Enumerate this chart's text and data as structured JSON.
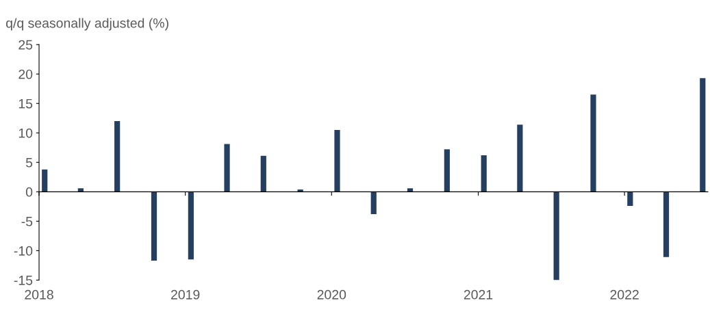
{
  "chart_data": {
    "type": "bar",
    "ylabel": "q/q seasonally adjusted (%)",
    "x": [
      "2018-01-15",
      "2018-04-15",
      "2018-07-15",
      "2018-10-15",
      "2019-01-15",
      "2019-04-15",
      "2019-07-15",
      "2019-10-15",
      "2020-01-15",
      "2020-04-15",
      "2020-07-15",
      "2020-10-15",
      "2021-01-15",
      "2021-04-15",
      "2021-07-15",
      "2021-10-15",
      "2022-01-15",
      "2022-04-15",
      "2022-07-15"
    ],
    "values": [
      3.8,
      0.6,
      12,
      -11.7,
      -11.5,
      8.1,
      6.1,
      0.4,
      10.5,
      -3.8,
      0.6,
      7.2,
      6.2,
      11.4,
      -15,
      16.5,
      -2.4,
      -11.1,
      19.3
    ],
    "color": "#243f60",
    "xlim": [
      "2018-01-01",
      "2022-07-28"
    ],
    "xticks": [
      {
        "value": "2018-01-01",
        "label": "2018"
      },
      {
        "value": "2019-01-01",
        "label": "2019"
      },
      {
        "value": "2020-01-01",
        "label": "2020"
      },
      {
        "value": "2021-01-01",
        "label": "2021"
      },
      {
        "value": "2022-01-01",
        "label": "2022"
      }
    ],
    "ylim": [
      -15,
      25
    ],
    "yticks": [
      -15,
      -10,
      -5,
      0,
      5,
      10,
      15,
      20,
      25
    ],
    "legend": false
  }
}
